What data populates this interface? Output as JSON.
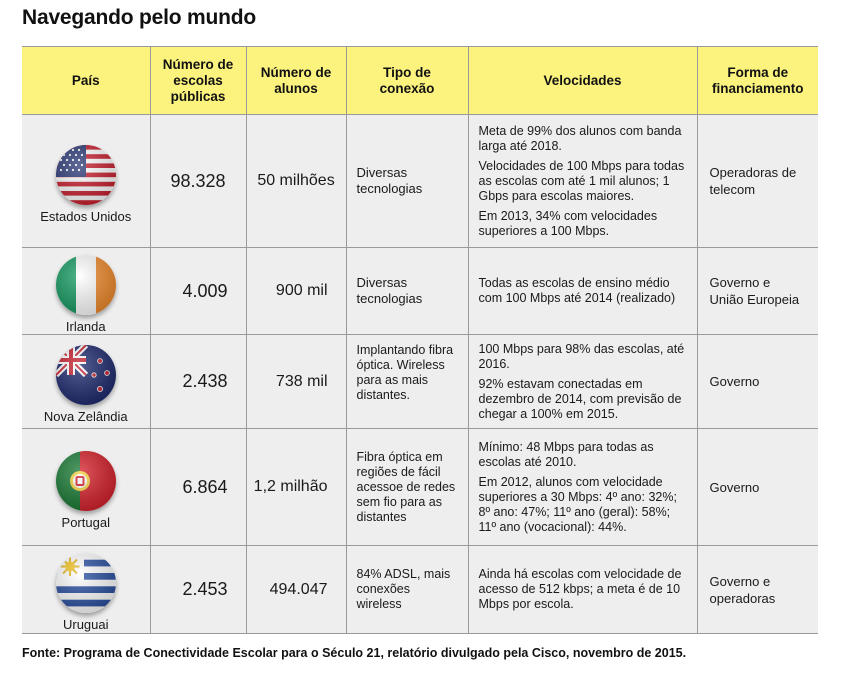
{
  "title": "Navegando pelo mundo",
  "headers": {
    "pais": "País",
    "escolas": "Número de escolas públicas",
    "alunos": "Número de alunos",
    "tipo": "Tipo de conexão",
    "velocidades": "Velocidades",
    "financiamento": "Forma de financiamento"
  },
  "rows": [
    {
      "pais": "Estados Unidos",
      "flag": "usa-flag-icon",
      "escolas": "98.328",
      "alunos": "50 milhões",
      "tipo": "Diversas tecnologias",
      "velocidades": [
        "Meta de 99% dos alunos com banda larga até 2018.",
        "Velocidades de 100 Mbps para todas as escolas com até 1 mil alunos; 1 Gbps para escolas maiores.",
        "Em 2013, 34% com velocidades superiores a 100 Mbps."
      ],
      "financiamento": "Operadoras de telecom"
    },
    {
      "pais": "Irlanda",
      "flag": "ireland-flag-icon",
      "escolas": "4.009",
      "alunos": "900 mil",
      "tipo": "Diversas tecnologias",
      "velocidades": [
        "Todas as escolas de ensino médio com 100 Mbps até 2014 (realizado)"
      ],
      "financiamento": "Governo e União Europeia"
    },
    {
      "pais": "Nova Zelândia",
      "flag": "new-zealand-flag-icon",
      "escolas": "2.438",
      "alunos": "738 mil",
      "tipo": "Implantando fibra óptica. Wireless para as mais distantes.",
      "velocidades": [
        "100 Mbps para 98% das escolas, até 2016.",
        "92% estavam conectadas em dezembro de 2014, com previsão de chegar a 100% em 2015."
      ],
      "financiamento": "Governo"
    },
    {
      "pais": "Portugal",
      "flag": "portugal-flag-icon",
      "escolas": "6.864",
      "alunos": "1,2 milhão",
      "tipo": "Fibra óptica em regiões de fácil acessoe de redes sem fio para as distantes",
      "velocidades": [
        "Mínimo: 48 Mbps para todas as escolas até 2010.",
        "Em 2012, alunos com velocidade superiores a 30 Mbps: 4º ano: 32%; 8º ano: 47%; 11º ano (geral): 58%; 11º ano (vocacional): 44%."
      ],
      "financiamento": "Governo"
    },
    {
      "pais": "Uruguai",
      "flag": "uruguay-flag-icon",
      "escolas": "2.453",
      "alunos": "494.047",
      "tipo": "84% ADSL, mais conexões wireless",
      "velocidades": [
        "Ainda há escolas com velocidade de acesso de 512 kbps; a meta é de 10 Mbps por escola."
      ],
      "financiamento": "Governo e operadoras"
    }
  ],
  "source": "Fonte: Programa de Conectividade Escolar para o Século 21, relatório divulgado pela Cisco, novembro de 2015.",
  "colors": {
    "header_bg": "#fbf37e",
    "row_bg": "#eeeeee",
    "border": "#9a9a9a"
  }
}
